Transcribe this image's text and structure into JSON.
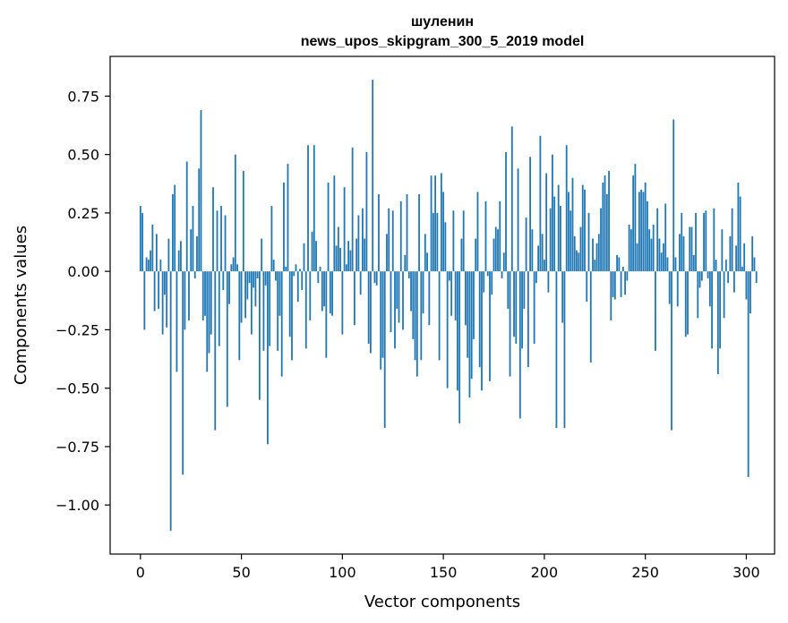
{
  "chart_data": {
    "type": "bar",
    "title_line1": "шуленин",
    "title_line2": "news_upos_skipgram_300_5_2019 model",
    "xlabel": "Vector components",
    "ylabel": "Components values",
    "xlim": [
      -15,
      314
    ],
    "ylim": [
      -1.21,
      0.92
    ],
    "x_ticks": [
      0,
      50,
      100,
      150,
      200,
      250,
      300
    ],
    "y_ticks": [
      0.75,
      0.5,
      0.25,
      0.0,
      -0.25,
      -0.5,
      -0.75,
      -1.0
    ],
    "x_tick_labels": [
      "0",
      "50",
      "100",
      "150",
      "200",
      "250",
      "300"
    ],
    "y_tick_labels": [
      "0.75",
      "0.50",
      "0.25",
      "0.00",
      "−0.25",
      "−0.50",
      "−0.75",
      "−1.00"
    ],
    "bar_color": "#1f77b4",
    "values": [
      0.28,
      0.25,
      -0.25,
      0.06,
      0.05,
      0.09,
      0.2,
      -0.17,
      0.16,
      -0.16,
      0.05,
      -0.27,
      -0.1,
      -0.24,
      0.14,
      -1.11,
      0.33,
      0.37,
      -0.43,
      0.09,
      0.13,
      -0.87,
      -0.25,
      0.47,
      -0.21,
      0.18,
      0.28,
      -0.03,
      0.15,
      0.44,
      0.69,
      -0.21,
      -0.19,
      -0.43,
      -0.35,
      -0.27,
      0.36,
      -0.68,
      0.26,
      -0.32,
      0.28,
      -0.08,
      0.24,
      -0.58,
      -0.14,
      0.03,
      0.06,
      0.5,
      0.03,
      -0.38,
      -0.22,
      0.43,
      -0.2,
      -0.12,
      -0.05,
      -0.27,
      -0.07,
      -0.15,
      -0.03,
      -0.55,
      0.14,
      -0.34,
      -0.06,
      -0.74,
      -0.32,
      0.28,
      0.05,
      -0.04,
      -0.34,
      -0.19,
      -0.45,
      0.38,
      0.02,
      0.46,
      -0.28,
      -0.38,
      -0.02,
      0.03,
      -0.13,
      0.01,
      -0.08,
      0.12,
      -0.33,
      0.54,
      -0.21,
      0.17,
      0.54,
      0.13,
      -0.05,
      0.02,
      -0.17,
      -0.15,
      -0.37,
      0.38,
      -0.18,
      -0.19,
      0.41,
      0.11,
      0.19,
      0.1,
      -0.27,
      0.36,
      0.03,
      0.13,
      0.09,
      0.53,
      -0.23,
      0.14,
      0.24,
      -0.1,
      0.27,
      0.14,
      0.51,
      -0.31,
      -0.35,
      0.82,
      -0.05,
      -0.06,
      0.33,
      -0.42,
      -0.37,
      -0.67,
      0.16,
      0.27,
      -0.26,
      0.26,
      -0.33,
      -0.16,
      -0.22,
      0.3,
      -0.25,
      0.07,
      0.33,
      -0.03,
      -0.17,
      -0.29,
      -0.38,
      -0.45,
      0.33,
      -0.38,
      -0.18,
      0.16,
      0.08,
      -0.23,
      0.41,
      0.25,
      0.41,
      0.25,
      -0.38,
      0.42,
      0.34,
      0.21,
      -0.5,
      -0.04,
      -0.19,
      0.26,
      -0.21,
      -0.51,
      -0.65,
      0.14,
      0.26,
      -0.23,
      -0.37,
      -0.54,
      -0.46,
      -0.29,
      0.14,
      0.34,
      -0.41,
      -0.51,
      -0.09,
      0.3,
      -0.02,
      -0.47,
      -0.1,
      0.14,
      0.19,
      0.18,
      0.3,
      -0.03,
      0.08,
      0.51,
      -0.16,
      -0.45,
      0.62,
      -0.28,
      -0.31,
      0.44,
      -0.63,
      -0.33,
      -0.16,
      0.23,
      -0.41,
      0.49,
      0.18,
      -0.31,
      -0.05,
      0.11,
      0.58,
      0.16,
      0.05,
      0.42,
      -0.09,
      0.27,
      0.5,
      0.32,
      -0.67,
      0.37,
      0.28,
      -0.22,
      -0.67,
      0.54,
      0.34,
      0.26,
      0.4,
      0.15,
      0.09,
      0.08,
      0.19,
      0.37,
      0.35,
      -0.13,
      0.25,
      -0.39,
      0.14,
      0.05,
      0.12,
      0.16,
      0.27,
      0.38,
      0.41,
      0.33,
      0.43,
      -0.21,
      -0.11,
      -0.12,
      0.07,
      0.06,
      -0.11,
      0.02,
      -0.1,
      -0.04,
      0.2,
      0.18,
      0.41,
      0.46,
      0.12,
      0.34,
      0.35,
      0.34,
      0.38,
      0.3,
      0.18,
      0.14,
      0.2,
      -0.34,
      0.27,
      0.14,
      0.08,
      0.12,
      0.29,
      0.06,
      -0.14,
      -0.68,
      0.65,
      0.06,
      -0.15,
      0.16,
      0.25,
      0.15,
      -0.28,
      -0.27,
      0.19,
      0.19,
      0.07,
      0.25,
      -0.2,
      -0.07,
      -0.04,
      0.25,
      0.26,
      -0.03,
      -0.15,
      -0.33,
      0.27,
      0.05,
      -0.44,
      -0.33,
      0.18,
      -0.2,
      0.05,
      -0.05,
      0.15,
      0.27,
      -0.09,
      0.11,
      0.38,
      0.32,
      0.02,
      0.12,
      -0.12,
      -0.88,
      -0.18,
      0.15,
      0.06,
      -0.05
    ]
  }
}
